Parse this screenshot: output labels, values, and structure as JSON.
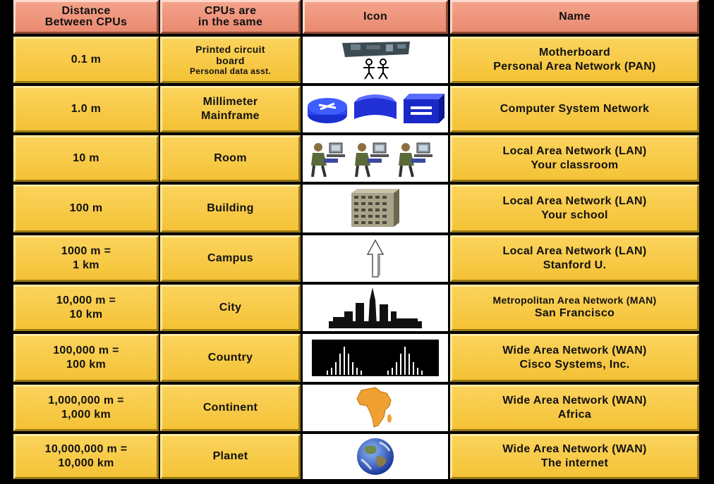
{
  "headers": [
    {
      "lines": [
        "Distance",
        "Between CPUs"
      ]
    },
    {
      "lines": [
        "CPUs are",
        "in the same"
      ]
    },
    {
      "lines": [
        "Icon"
      ]
    },
    {
      "lines": [
        "Name"
      ]
    }
  ],
  "rows": [
    {
      "distance": [
        "0.1 m"
      ],
      "place": [
        "Printed circuit",
        "board",
        "Personal data asst."
      ],
      "icon": "motherboard-and-people-icon",
      "name": [
        "Motherboard",
        "Personal Area Network (PAN)"
      ]
    },
    {
      "distance": [
        "1.0 m"
      ],
      "place": [
        "Millimeter",
        "Mainframe"
      ],
      "icon": "router-switch-server-icon",
      "name": [
        "Computer System Network"
      ]
    },
    {
      "distance": [
        "10 m"
      ],
      "place": [
        "Room"
      ],
      "icon": "workstations-icon",
      "name": [
        "Local Area Network (LAN)",
        "Your classroom"
      ]
    },
    {
      "distance": [
        "100 m"
      ],
      "place": [
        "Building"
      ],
      "icon": "building-icon",
      "name": [
        "Local Area Network (LAN)",
        "Your school"
      ]
    },
    {
      "distance": [
        "1000 m =",
        "1 km"
      ],
      "place": [
        "Campus"
      ],
      "icon": "arrow-up-icon",
      "name": [
        "Local Area Network (LAN)",
        "Stanford U."
      ]
    },
    {
      "distance": [
        "10,000 m =",
        "10 km"
      ],
      "place": [
        "City"
      ],
      "icon": "city-skyline-icon",
      "name": [
        "Metropolitan Area Network (MAN)",
        "San Francisco"
      ]
    },
    {
      "distance": [
        "100,000 m =",
        "100 km"
      ],
      "place": [
        "Country"
      ],
      "icon": "cisco-logo-icon",
      "name": [
        "Wide Area Network (WAN)",
        "Cisco Systems, Inc."
      ]
    },
    {
      "distance": [
        "1,000,000 m =",
        "1,000 km"
      ],
      "place": [
        "Continent"
      ],
      "icon": "africa-map-icon",
      "name": [
        "Wide Area Network (WAN)",
        "Africa"
      ]
    },
    {
      "distance": [
        "10,000,000 m =",
        "10,000 km"
      ],
      "place": [
        "Planet"
      ],
      "icon": "earth-globe-icon",
      "name": [
        "Wide Area Network (WAN)",
        "The internet"
      ]
    }
  ],
  "colors": {
    "header": "#f4a28a",
    "cell": "#fbd35c",
    "africa": "#f0a030",
    "building": "#a8a48a"
  }
}
